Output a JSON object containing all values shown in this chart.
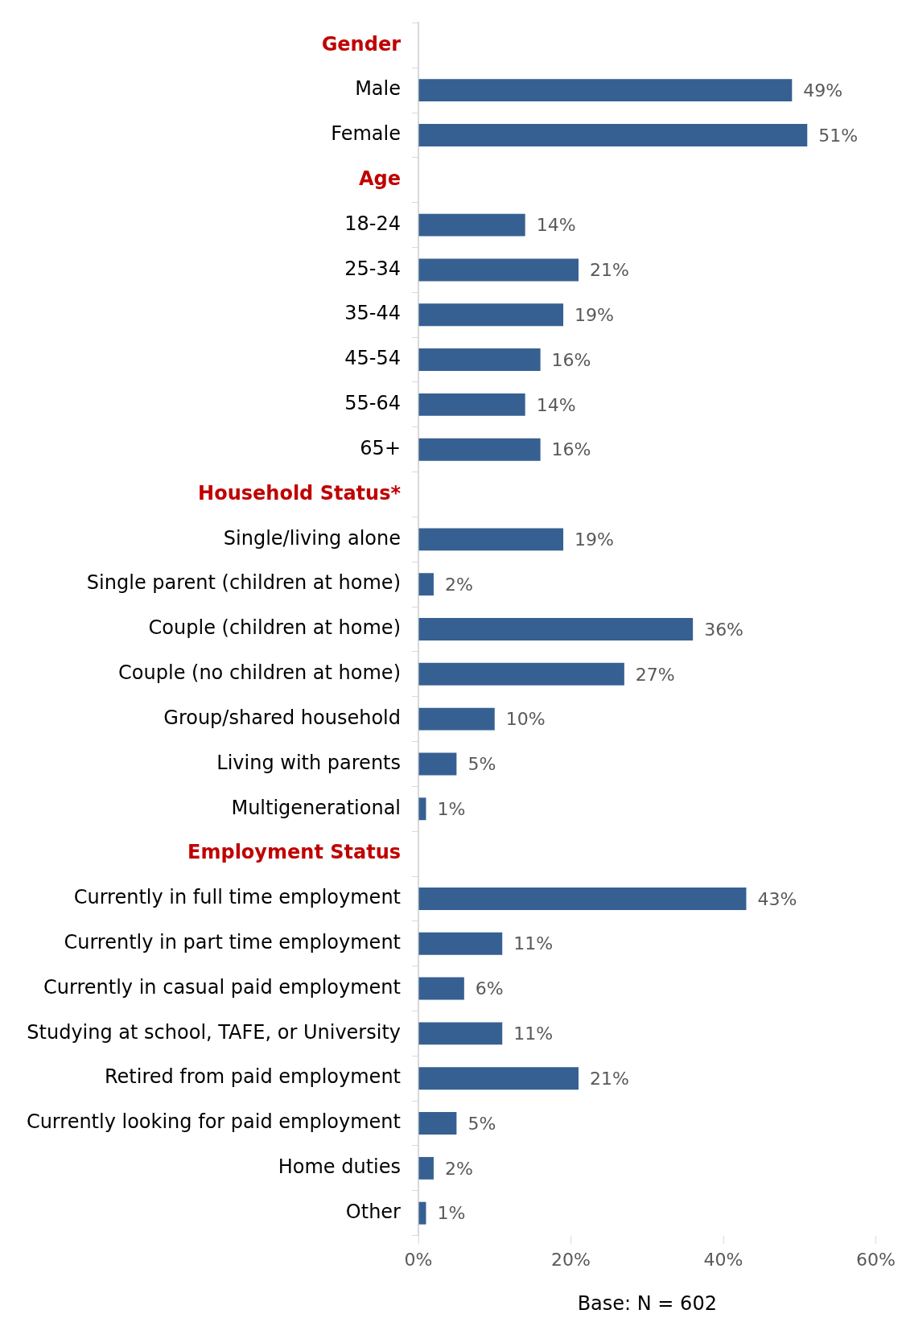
{
  "chart_data": {
    "type": "bar",
    "orientation": "horizontal",
    "categories": [
      "Gender",
      "Male",
      "Female",
      "Age",
      "18-24",
      "25-34",
      "35-44",
      "45-54",
      "55-64",
      "65+",
      "Household Status*",
      "Single/living alone",
      "Single parent (children at home)",
      "Couple (children at home)",
      "Couple (no children at home)",
      "Group/shared household",
      "Living with parents",
      "Multigenerational",
      "Employment Status",
      "Currently in full time employment",
      "Currently in part time employment",
      "Currently in casual paid employment",
      "Studying at school, TAFE, or University",
      "Retired from paid employment",
      "Currently looking for paid employment",
      "Home duties",
      "Other"
    ],
    "values": [
      null,
      49,
      51,
      null,
      14,
      21,
      19,
      16,
      14,
      16,
      null,
      19,
      2,
      36,
      27,
      10,
      5,
      1,
      null,
      43,
      11,
      6,
      11,
      21,
      5,
      2,
      1
    ],
    "color": "#376092",
    "xlim": [
      0,
      60
    ],
    "xticks": [
      {
        "value": 0,
        "label": "0%"
      },
      {
        "value": 20,
        "label": "20%"
      },
      {
        "value": 40,
        "label": "40%"
      },
      {
        "value": 60,
        "label": "60%"
      }
    ],
    "value_labels": [
      null,
      "49%",
      "51%",
      null,
      "14%",
      "21%",
      "19%",
      "16%",
      "14%",
      "16%",
      null,
      "19%",
      "2%",
      "36%",
      "27%",
      "10%",
      "5%",
      "1%",
      null,
      "43%",
      "11%",
      "6%",
      "11%",
      "21%",
      "5%",
      "2%",
      "1%"
    ],
    "annotations": [
      "Base: N = 602"
    ],
    "grid": false,
    "legend": false
  }
}
